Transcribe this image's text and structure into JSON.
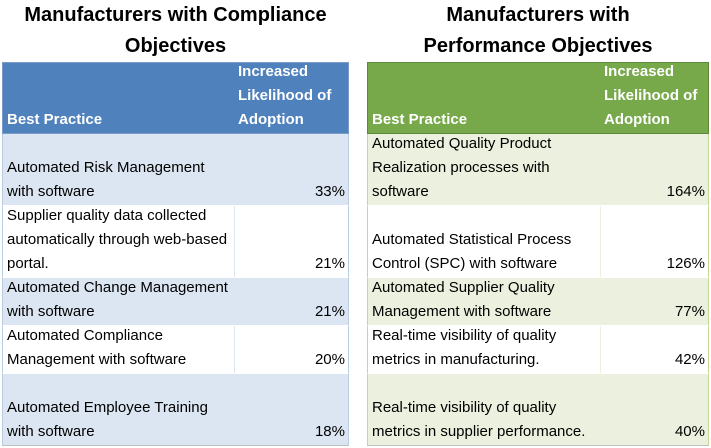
{
  "left": {
    "title": "Manufacturers with Compliance Objectives",
    "header": {
      "practice": "Best Practice",
      "likelihood": "Increased Likelihood of Adoption"
    },
    "rows": [
      {
        "practice": "Automated Risk Management with software",
        "value": "33%"
      },
      {
        "practice": "Supplier quality data collected automatically through web-based portal.",
        "value": "21%"
      },
      {
        "practice": "Automated Change Management with software",
        "value": "21%"
      },
      {
        "practice": "Automated Compliance Management with software",
        "value": "20%"
      },
      {
        "practice": "Automated Employee Training with software",
        "value": "18%"
      }
    ]
  },
  "right": {
    "title": "Manufacturers with Performance Objectives",
    "header": {
      "practice": "Best Practice",
      "likelihood": "Increased Likelihood of Adoption"
    },
    "rows": [
      {
        "practice": "Automated Quality Product Realization processes with software",
        "value": "164%"
      },
      {
        "practice": "Automated Statistical Process Control (SPC) with software",
        "value": "126%"
      },
      {
        "practice": "Automated Supplier Quality Management with software",
        "value": "77%"
      },
      {
        "practice": "Real-time visibility of quality metrics in manufacturing.",
        "value": "42%"
      },
      {
        "practice": "Real-time visibility of quality metrics in supplier performance.",
        "value": "40%"
      }
    ]
  }
}
